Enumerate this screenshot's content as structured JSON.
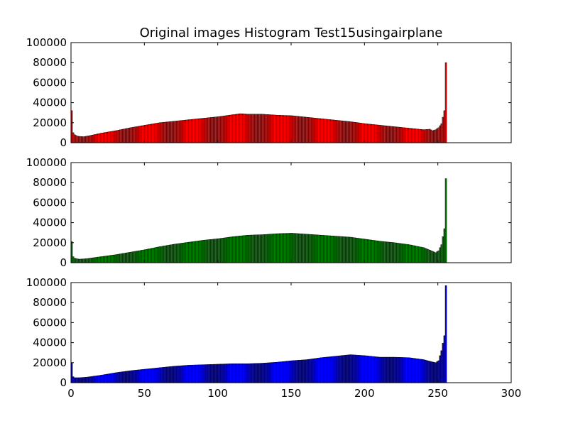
{
  "chart_data": [
    {
      "type": "bar",
      "title": "Original images Histogram Test15usingairplane",
      "xlabel": "",
      "ylabel": "",
      "xlim": [
        0,
        300
      ],
      "ylim": [
        0,
        100000
      ],
      "yticks": [
        "0",
        "20000",
        "40000",
        "60000",
        "80000",
        "100000"
      ],
      "xticks": [],
      "color": "#ff0000",
      "series": [
        {
          "points": [
            [
              0,
              32000
            ],
            [
              1,
              10000
            ],
            [
              2,
              8000
            ],
            [
              4,
              6500
            ],
            [
              8,
              6000
            ],
            [
              12,
              7000
            ],
            [
              20,
              9500
            ],
            [
              30,
              12000
            ],
            [
              40,
              15000
            ],
            [
              50,
              17500
            ],
            [
              60,
              20000
            ],
            [
              70,
              21500
            ],
            [
              80,
              23000
            ],
            [
              90,
              24500
            ],
            [
              100,
              26000
            ],
            [
              110,
              28000
            ],
            [
              115,
              29000
            ],
            [
              120,
              28500
            ],
            [
              130,
              28500
            ],
            [
              140,
              27500
            ],
            [
              150,
              27000
            ],
            [
              160,
              25500
            ],
            [
              170,
              24000
            ],
            [
              180,
              22500
            ],
            [
              190,
              21000
            ],
            [
              200,
              19000
            ],
            [
              210,
              17500
            ],
            [
              220,
              16000
            ],
            [
              230,
              14500
            ],
            [
              240,
              13000
            ],
            [
              244,
              13500
            ],
            [
              246,
              12000
            ],
            [
              248,
              13000
            ],
            [
              250,
              15000
            ],
            [
              252,
              19000
            ],
            [
              254,
              32000
            ],
            [
              255,
              80000
            ]
          ]
        }
      ]
    },
    {
      "type": "bar",
      "title": "",
      "xlabel": "",
      "ylabel": "",
      "xlim": [
        0,
        300
      ],
      "ylim": [
        0,
        100000
      ],
      "yticks": [
        "0",
        "20000",
        "40000",
        "60000",
        "80000",
        "100000"
      ],
      "xticks": [],
      "color": "#008000",
      "series": [
        {
          "points": [
            [
              0,
              21000
            ],
            [
              1,
              6000
            ],
            [
              2,
              4500
            ],
            [
              5,
              3500
            ],
            [
              10,
              4000
            ],
            [
              20,
              6000
            ],
            [
              30,
              8000
            ],
            [
              40,
              10500
            ],
            [
              50,
              13000
            ],
            [
              60,
              16000
            ],
            [
              70,
              18500
            ],
            [
              80,
              20500
            ],
            [
              90,
              22500
            ],
            [
              100,
              24000
            ],
            [
              110,
              26000
            ],
            [
              120,
              27500
            ],
            [
              130,
              28000
            ],
            [
              140,
              29000
            ],
            [
              150,
              29500
            ],
            [
              160,
              28500
            ],
            [
              170,
              27500
            ],
            [
              180,
              26500
            ],
            [
              190,
              25500
            ],
            [
              200,
              23500
            ],
            [
              210,
              21500
            ],
            [
              220,
              20000
            ],
            [
              230,
              18000
            ],
            [
              240,
              15000
            ],
            [
              245,
              12000
            ],
            [
              248,
              10000
            ],
            [
              250,
              12000
            ],
            [
              252,
              18000
            ],
            [
              254,
              34000
            ],
            [
              255,
              84000
            ]
          ]
        }
      ]
    },
    {
      "type": "bar",
      "title": "",
      "xlabel": "",
      "ylabel": "",
      "xlim": [
        0,
        300
      ],
      "ylim": [
        0,
        100000
      ],
      "yticks": [
        "0",
        "20000",
        "40000",
        "60000",
        "80000",
        "100000"
      ],
      "xticks": [
        "0",
        "50",
        "100",
        "150",
        "200",
        "250",
        "300"
      ],
      "color": "#0000ff",
      "series": [
        {
          "points": [
            [
              0,
              20000
            ],
            [
              1,
              6000
            ],
            [
              2,
              5000
            ],
            [
              5,
              5000
            ],
            [
              10,
              5500
            ],
            [
              20,
              7500
            ],
            [
              30,
              10000
            ],
            [
              40,
              12000
            ],
            [
              50,
              13500
            ],
            [
              60,
              15000
            ],
            [
              70,
              16500
            ],
            [
              80,
              17500
            ],
            [
              90,
              18000
            ],
            [
              100,
              18500
            ],
            [
              110,
              19000
            ],
            [
              120,
              19000
            ],
            [
              130,
              19500
            ],
            [
              140,
              20500
            ],
            [
              150,
              22000
            ],
            [
              160,
              23000
            ],
            [
              170,
              25000
            ],
            [
              180,
              26500
            ],
            [
              190,
              28000
            ],
            [
              200,
              27000
            ],
            [
              210,
              25500
            ],
            [
              220,
              25500
            ],
            [
              230,
              25000
            ],
            [
              240,
              23000
            ],
            [
              245,
              21000
            ],
            [
              248,
              20000
            ],
            [
              250,
              22000
            ],
            [
              252,
              32000
            ],
            [
              254,
              47000
            ],
            [
              255,
              97000
            ]
          ]
        }
      ]
    }
  ]
}
